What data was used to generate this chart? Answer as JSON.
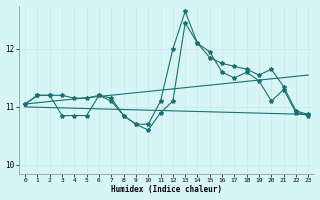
{
  "xlabel": "Humidex (Indice chaleur)",
  "bg_color": "#d8f5f5",
  "grid_color": "#c8e8e8",
  "line_color": "#1a7070",
  "xlim": [
    -0.5,
    23.5
  ],
  "ylim": [
    9.85,
    12.75
  ],
  "yticks": [
    10,
    11,
    12
  ],
  "xticks": [
    0,
    1,
    2,
    3,
    4,
    5,
    6,
    7,
    8,
    9,
    10,
    11,
    12,
    13,
    14,
    15,
    16,
    17,
    18,
    19,
    20,
    21,
    22,
    23
  ],
  "line1_x": [
    0,
    1,
    2,
    3,
    4,
    5,
    6,
    7,
    8,
    9,
    10,
    11,
    12,
    13,
    14,
    15,
    16,
    17,
    18,
    19,
    20,
    21,
    22,
    23
  ],
  "line1_y": [
    11.05,
    11.2,
    11.2,
    11.2,
    11.15,
    11.15,
    11.2,
    11.15,
    10.85,
    10.7,
    10.7,
    11.1,
    12.0,
    12.65,
    12.1,
    11.85,
    11.75,
    11.7,
    11.65,
    11.55,
    11.65,
    11.35,
    10.93,
    10.87
  ],
  "line2_x": [
    0,
    1,
    2,
    3,
    4,
    5,
    6,
    7,
    8,
    9,
    10,
    11,
    12,
    13,
    14,
    15,
    16,
    17,
    18,
    19,
    20,
    21,
    22,
    23
  ],
  "line2_y": [
    11.05,
    11.2,
    11.2,
    10.85,
    10.85,
    10.85,
    11.2,
    11.1,
    10.85,
    10.7,
    10.6,
    10.9,
    11.1,
    12.45,
    12.1,
    11.95,
    11.6,
    11.5,
    11.6,
    11.45,
    11.1,
    11.3,
    10.9,
    10.85
  ],
  "line3_x": [
    0,
    23
  ],
  "line3_y": [
    11.0,
    10.87
  ],
  "line4_x": [
    0,
    23
  ],
  "line4_y": [
    11.05,
    11.55
  ]
}
